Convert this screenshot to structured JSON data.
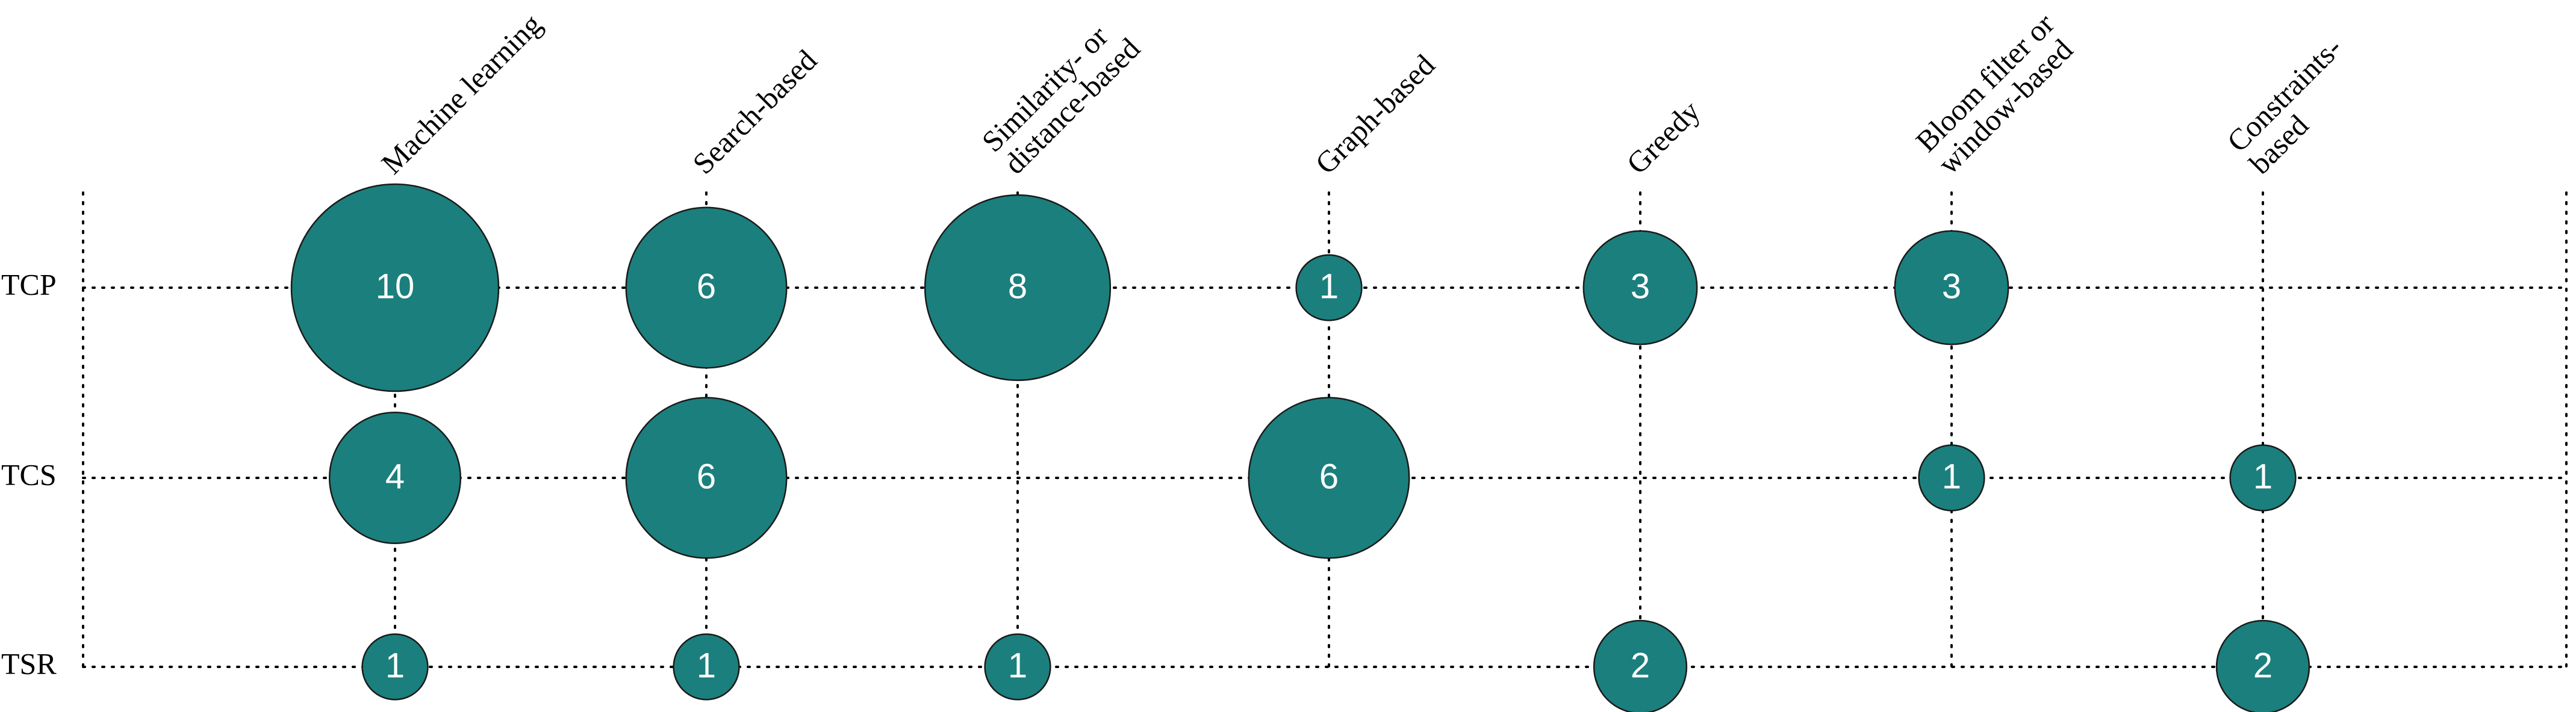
{
  "chart_data": {
    "type": "bubble",
    "rows": [
      "TCP",
      "TCS",
      "TSR"
    ],
    "columns": [
      [
        "Machine learning"
      ],
      [
        "Search-based"
      ],
      [
        "Similarity- or",
        "distance-based"
      ],
      [
        "Graph-based"
      ],
      [
        "Greedy"
      ],
      [
        "Bloom filter or",
        "window-based"
      ],
      [
        "Constraints-",
        "based"
      ]
    ],
    "values": [
      [
        10,
        6,
        8,
        1,
        3,
        3,
        null
      ],
      [
        4,
        6,
        null,
        6,
        null,
        1,
        1
      ],
      [
        1,
        1,
        1,
        null,
        2,
        null,
        2
      ]
    ],
    "bubble_color": "#1b7f7d",
    "grid": "dotted"
  }
}
